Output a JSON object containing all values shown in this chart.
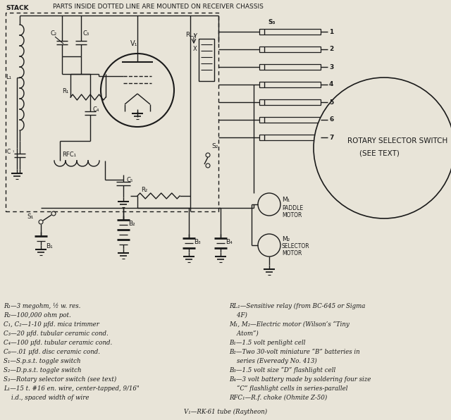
{
  "bg_color": "#e8e4d8",
  "line_color": "#1a1a1a",
  "title_top": "PARTS INSIDE DOTTED LINE ARE MOUNTED ON RECEIVER CHASSIS",
  "stack_label": "STACK",
  "rotary_label1": "ROTARY SELECTOR SWITCH",
  "rotary_label2": "(SEE TEXT)",
  "legend_left": [
    "R₁—3 megohm, ½ w. res.",
    "R₂—100,000 ohm pot.",
    "C₁, C₂—1-10 μfd. mica trimmer",
    "C₃—20 μfd. tubular ceramic cond.",
    "C₄—100 μfd. tubular ceramic cond.",
    "C₆—.01 μfd. disc ceramic cond.",
    "S₁—S.p.s.t. toggle switch",
    "S₂—D.p.s.t. toggle switch",
    "S₃—Rotary selector switch (see text)",
    "L₁—15 t. #16 en. wire, center-tapped, 9/16\"",
    "    i.d., spaced width of wire"
  ],
  "legend_right": [
    "RL₁—Sensitive relay (from BC-645 or Sigma",
    "    4F)",
    "M₁, M₂—Electric motor (Wilson’s “Tiny",
    "    Atom”)",
    "B₁—1.5 volt penlight cell",
    "B₂—Two 30-volt miniature “B” batteries in",
    "    series (Eveready No. 413)",
    "B₃—1.5 volt size “D” flashlight cell",
    "B₄—3 volt battery made by soldering four size",
    "    “C” flashlight cells in series-parallel",
    "RFC₁—R.f. choke (Ohmite Z-50)"
  ],
  "legend_bottom": "V₁—RK-61 tube (Raytheon)"
}
